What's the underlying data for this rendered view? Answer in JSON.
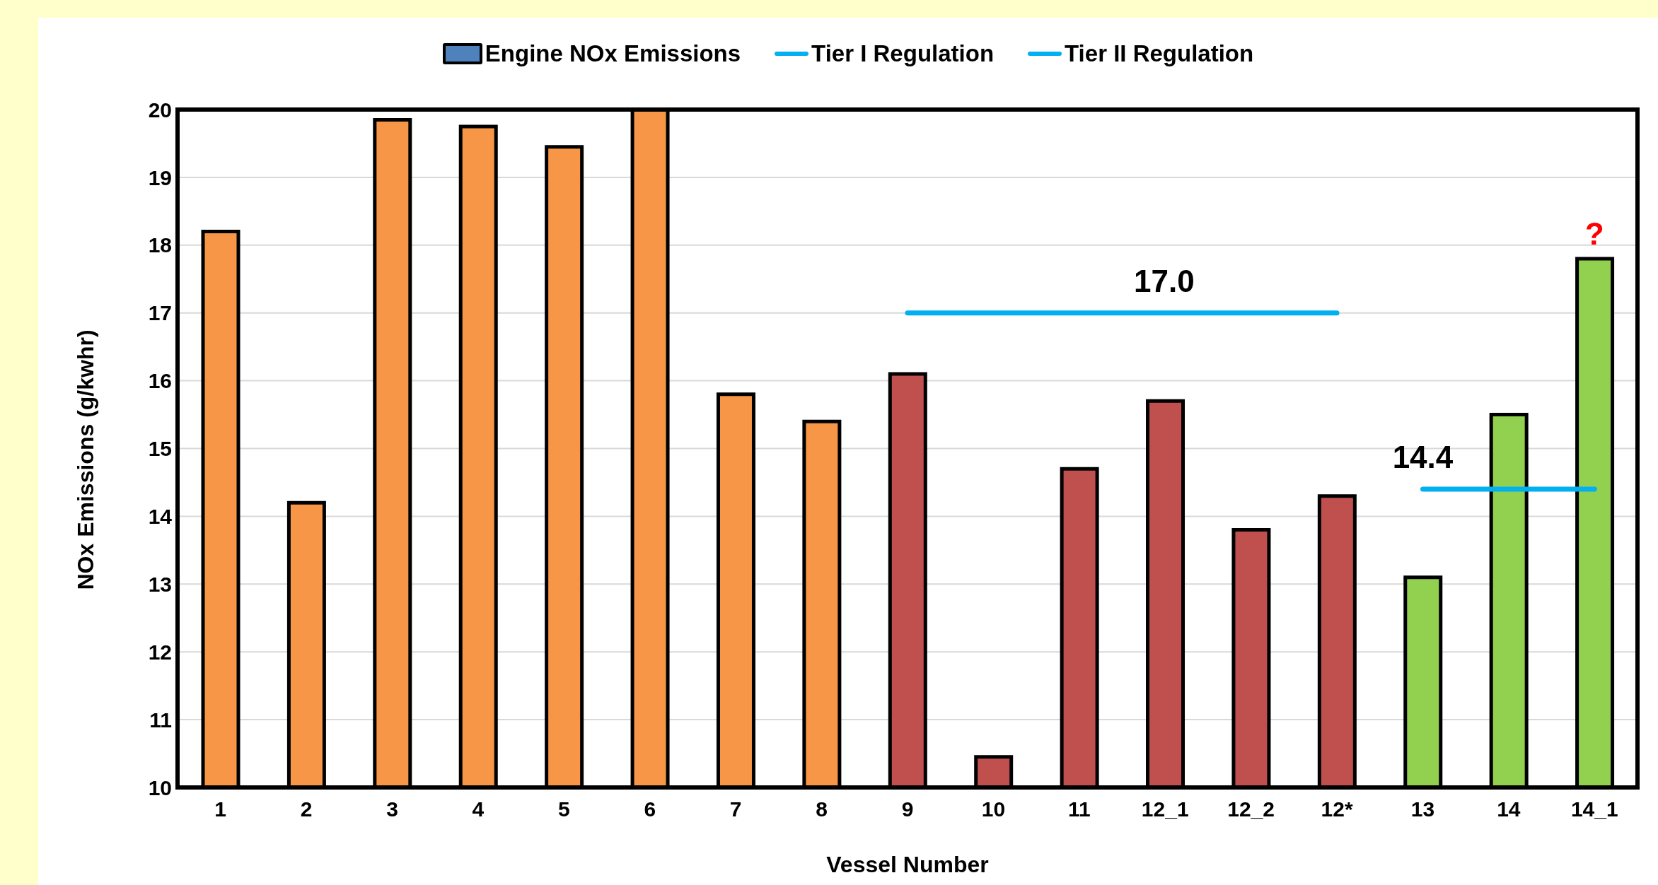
{
  "chart_data": {
    "type": "bar",
    "xlabel": "Vessel Number",
    "ylabel": "NOx Emissions (g/kwhr)",
    "categories": [
      "1",
      "2",
      "3",
      "4",
      "5",
      "6",
      "7",
      "8",
      "9",
      "10",
      "11",
      "12_1",
      "12_2",
      "12*",
      "13",
      "14",
      "14_1"
    ],
    "series": [
      {
        "name": "Engine NOx Emissions",
        "color": "#4f81bd",
        "colors": [
          "#f79646",
          "#f79646",
          "#f79646",
          "#f79646",
          "#f79646",
          "#f79646",
          "#f79646",
          "#f79646",
          "#c0504d",
          "#c0504d",
          "#c0504d",
          "#c0504d",
          "#c0504d",
          "#c0504d",
          "#92d050",
          "#92d050",
          "#92d050"
        ],
        "values": [
          18.2,
          14.2,
          19.85,
          19.75,
          19.45,
          20,
          15.8,
          15.4,
          16.1,
          10.45,
          14.7,
          15.7,
          13.8,
          14.3,
          13.1,
          15.5,
          17.8
        ]
      },
      {
        "name": "Tier I Regulation",
        "type": "line",
        "color": "#00b0f0",
        "values": [
          null,
          null,
          null,
          null,
          null,
          null,
          null,
          null,
          17.0,
          17.0,
          17.0,
          17.0,
          17.0,
          17.0,
          null,
          null,
          null
        ]
      },
      {
        "name": "Tier II Regulation",
        "type": "line",
        "color": "#00b0f0",
        "values": [
          null,
          null,
          null,
          null,
          null,
          null,
          null,
          null,
          null,
          null,
          null,
          null,
          null,
          null,
          14.4,
          14.4,
          14.4
        ]
      }
    ],
    "annotations": [
      "17.0",
      "14.4",
      "?"
    ],
    "ylim": [
      10,
      20
    ],
    "yticks": [
      10,
      11,
      12,
      13,
      14,
      15,
      16,
      17,
      18,
      19,
      20
    ],
    "grid": "y",
    "legend": "top",
    "marker": "none",
    "line_style": "solid"
  }
}
